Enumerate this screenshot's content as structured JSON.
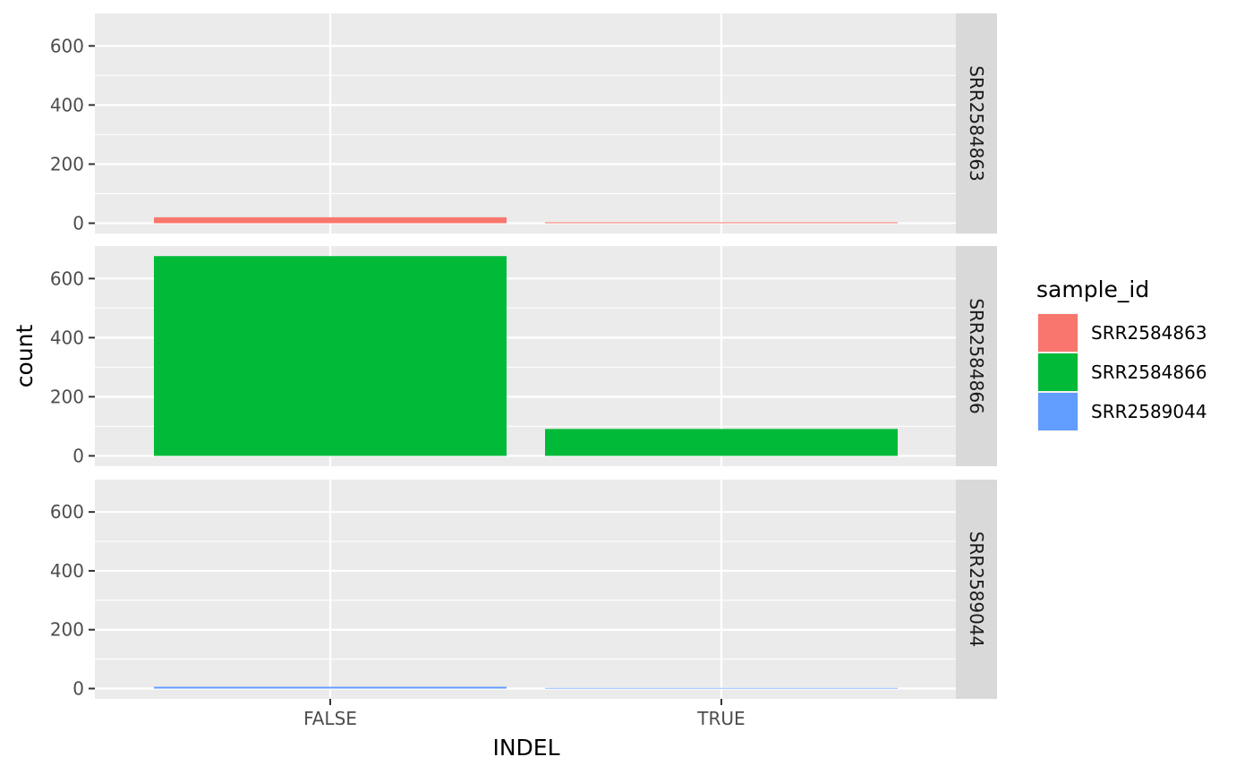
{
  "chart_data": {
    "type": "bar",
    "facet": "rows",
    "xlabel": "INDEL",
    "ylabel": "count",
    "categories": [
      "FALSE",
      "TRUE"
    ],
    "yticks": [
      0,
      200,
      400,
      600
    ],
    "ylim": [
      -35,
      710
    ],
    "grid": true,
    "legend": {
      "title": "sample_id",
      "placement": "right",
      "entries": [
        "SRR2584863",
        "SRR2584866",
        "SRR2589044"
      ]
    },
    "series": [
      {
        "name": "SRR2584863",
        "values": [
          20,
          3
        ],
        "color": "#F8766D"
      },
      {
        "name": "SRR2584866",
        "values": [
          676,
          91
        ],
        "color": "#00BA38"
      },
      {
        "name": "SRR2589044",
        "values": [
          6,
          2
        ],
        "color": "#619CFF"
      }
    ]
  }
}
